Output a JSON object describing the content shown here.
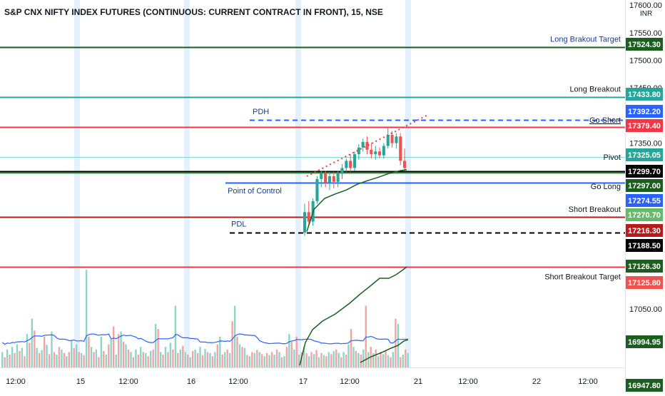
{
  "header": {
    "title": "S&P CNX NIFTY INDEX FUTURES (CONTINUOUS: CURRENT CONTRACT IN FRONT), 15, NSE"
  },
  "colors": {
    "up": "#26a69a",
    "down": "#ef5350",
    "vol_up": "#8fd3c9",
    "vol_down": "#f5a3a3",
    "session_band": "#e3f0fd",
    "ma_green": "#1b5e20",
    "ma_blue": "#2962ff"
  },
  "chart_data": {
    "type": "candlestick",
    "symbol_title": "S&P CNX NIFTY INDEX FUTURES (CONTINUOUS: CURRENT CONTRACT IN FRONT), 15, NSE",
    "currency": "INR",
    "ylim": [
      16935,
      17605
    ],
    "price_ticks": [
      17600,
      17550,
      17500,
      17450,
      17350,
      17050
    ],
    "x_ticks": [
      "12:00",
      "15",
      "12:00",
      "16",
      "12:00",
      "17",
      "12:00",
      "21",
      "12:00",
      "22",
      "12:00"
    ],
    "levels": [
      {
        "name": "Long Brakout Target",
        "value": 17524.3,
        "color": "#1b5e20",
        "style": "solid",
        "label_bg": "#1b5e20",
        "name_color": "#1e3a8a"
      },
      {
        "name": "Long Breakout",
        "value": 17433.8,
        "color": "#26a69a",
        "style": "solid",
        "label_bg": "#26a69a",
        "name_color": "#131722"
      },
      {
        "name": "Go Short",
        "value": 17392.2,
        "color": "#2962ff",
        "style": "dashed",
        "label_bg": "#2962ff",
        "name_color": "#131722"
      },
      {
        "name": "",
        "value": 17379.4,
        "color": "#f23645",
        "style": "solid",
        "label_bg": "#f23645",
        "name_color": "#131722"
      },
      {
        "name": "Pivot",
        "value": 17325.05,
        "color": "#26a69a",
        "style": "thin",
        "label_bg": "#26a69a",
        "name_color": "#131722"
      },
      {
        "name": "",
        "value": 17299.7,
        "color": "#000000",
        "style": "solid",
        "label_bg": "#000000",
        "name_color": "#131722"
      },
      {
        "name": "",
        "value": 17297.0,
        "color": "#43a047",
        "style": "solid",
        "label_bg": "#1b5e20",
        "name_color": "#131722"
      },
      {
        "name": "Go Long",
        "value": 17274.55,
        "color": "#2962ff",
        "style": "hidden",
        "label_bg": "#2962ff",
        "name_color": "#131722"
      },
      {
        "name": "",
        "value": 17270.7,
        "color": "#66bb6a",
        "style": "hidden",
        "label_bg": "#66bb6a",
        "name_color": "#131722"
      },
      {
        "name": "Short Breakout",
        "value": 17216.3,
        "color": "#b71c1c",
        "style": "solid",
        "label_bg": "#b71c1c",
        "name_color": "#131722"
      },
      {
        "name": "",
        "value": 17188.5,
        "color": "#000000",
        "style": "dashed",
        "label_bg": "#000000",
        "name_color": "#131722"
      },
      {
        "name": "Short Breakout Target",
        "value": 17126.3,
        "color": "#f23645",
        "style": "solid",
        "label_bg": "#1b5e20",
        "name_color": "#131722"
      },
      {
        "name": "",
        "value": 17125.8,
        "color": "#ef5350",
        "style": "hidden",
        "label_bg": "#ef5350",
        "name_color": "#131722"
      }
    ],
    "extra_price_labels": [
      {
        "value": 16994.95,
        "bg": "#1b5e20"
      },
      {
        "value": 16947.8,
        "bg": "#1b5e20"
      }
    ],
    "annotations": [
      {
        "text": "PDH",
        "value": 17392.2,
        "color": "#1e3a8a"
      },
      {
        "text": "Point of Control",
        "value": 17274.55,
        "color": "#1e3a8a"
      },
      {
        "text": "PDL",
        "value": 17188.5,
        "color": "#1e3a8a"
      }
    ],
    "candles": [
      {
        "o": 17188,
        "h": 17240,
        "l": 17182,
        "c": 17225
      },
      {
        "o": 17225,
        "h": 17245,
        "l": 17200,
        "c": 17208
      },
      {
        "o": 17208,
        "h": 17250,
        "l": 17200,
        "c": 17245
      },
      {
        "o": 17245,
        "h": 17290,
        "l": 17240,
        "c": 17285
      },
      {
        "o": 17285,
        "h": 17300,
        "l": 17270,
        "c": 17295
      },
      {
        "o": 17295,
        "h": 17300,
        "l": 17270,
        "c": 17278
      },
      {
        "o": 17278,
        "h": 17298,
        "l": 17265,
        "c": 17290
      },
      {
        "o": 17290,
        "h": 17298,
        "l": 17268,
        "c": 17280
      },
      {
        "o": 17280,
        "h": 17300,
        "l": 17270,
        "c": 17295
      },
      {
        "o": 17295,
        "h": 17312,
        "l": 17285,
        "c": 17305
      },
      {
        "o": 17305,
        "h": 17322,
        "l": 17298,
        "c": 17318
      },
      {
        "o": 17318,
        "h": 17330,
        "l": 17298,
        "c": 17305
      },
      {
        "o": 17305,
        "h": 17335,
        "l": 17300,
        "c": 17330
      },
      {
        "o": 17330,
        "h": 17348,
        "l": 17320,
        "c": 17342
      },
      {
        "o": 17342,
        "h": 17358,
        "l": 17335,
        "c": 17352
      },
      {
        "o": 17352,
        "h": 17362,
        "l": 17330,
        "c": 17338
      },
      {
        "o": 17338,
        "h": 17350,
        "l": 17322,
        "c": 17330
      },
      {
        "o": 17330,
        "h": 17345,
        "l": 17320,
        "c": 17335
      },
      {
        "o": 17335,
        "h": 17342,
        "l": 17322,
        "c": 17328
      },
      {
        "o": 17328,
        "h": 17350,
        "l": 17322,
        "c": 17345
      },
      {
        "o": 17345,
        "h": 17378,
        "l": 17340,
        "c": 17365
      },
      {
        "o": 17365,
        "h": 17372,
        "l": 17342,
        "c": 17350
      },
      {
        "o": 17350,
        "h": 17368,
        "l": 17340,
        "c": 17362
      },
      {
        "o": 17362,
        "h": 17368,
        "l": 17310,
        "c": 17318
      },
      {
        "o": 17318,
        "h": 17340,
        "l": 17300,
        "c": 17305
      }
    ],
    "volume": [
      {
        "v": 30,
        "up": true
      },
      {
        "v": 20,
        "up": false
      },
      {
        "v": 35,
        "up": true
      },
      {
        "v": 25,
        "up": false
      },
      {
        "v": 40,
        "up": true
      },
      {
        "v": 28,
        "up": false
      },
      {
        "v": 45,
        "up": true
      },
      {
        "v": 32,
        "up": false
      },
      {
        "v": 38,
        "up": true
      },
      {
        "v": 22,
        "up": false
      },
      {
        "v": 65,
        "up": true
      },
      {
        "v": 48,
        "up": false
      },
      {
        "v": 95,
        "up": true
      },
      {
        "v": 72,
        "up": false
      },
      {
        "v": 38,
        "up": true
      },
      {
        "v": 28,
        "up": false
      },
      {
        "v": 34,
        "up": true
      },
      {
        "v": 60,
        "up": false
      },
      {
        "v": 44,
        "up": true
      },
      {
        "v": 26,
        "up": false
      },
      {
        "v": 70,
        "up": true
      },
      {
        "v": 30,
        "up": false
      },
      {
        "v": 25,
        "up": true
      },
      {
        "v": 40,
        "up": false
      },
      {
        "v": 35,
        "up": true
      },
      {
        "v": 28,
        "up": false
      },
      {
        "v": 22,
        "up": true
      },
      {
        "v": 30,
        "up": false
      },
      {
        "v": 52,
        "up": true
      },
      {
        "v": 38,
        "up": false
      },
      {
        "v": 45,
        "up": true
      },
      {
        "v": 30,
        "up": false
      },
      {
        "v": 28,
        "up": true
      },
      {
        "v": 24,
        "up": false
      },
      {
        "v": 190,
        "up": true
      },
      {
        "v": 60,
        "up": false
      },
      {
        "v": 40,
        "up": true
      },
      {
        "v": 30,
        "up": false
      },
      {
        "v": 35,
        "up": true
      },
      {
        "v": 20,
        "up": false
      },
      {
        "v": 60,
        "up": true
      },
      {
        "v": 32,
        "up": false
      },
      {
        "v": 25,
        "up": true
      },
      {
        "v": 45,
        "up": false
      },
      {
        "v": 55,
        "up": true
      },
      {
        "v": 80,
        "up": false
      },
      {
        "v": 25,
        "up": true
      },
      {
        "v": 65,
        "up": false
      },
      {
        "v": 70,
        "up": true
      },
      {
        "v": 50,
        "up": false
      },
      {
        "v": 45,
        "up": true
      },
      {
        "v": 35,
        "up": false
      },
      {
        "v": 30,
        "up": true
      },
      {
        "v": 20,
        "up": false
      },
      {
        "v": 35,
        "up": true
      },
      {
        "v": 25,
        "up": false
      },
      {
        "v": 40,
        "up": true
      },
      {
        "v": 30,
        "up": false
      },
      {
        "v": 28,
        "up": true
      },
      {
        "v": 22,
        "up": false
      },
      {
        "v": 32,
        "up": true
      },
      {
        "v": 35,
        "up": false
      },
      {
        "v": 85,
        "up": true
      },
      {
        "v": 75,
        "up": false
      },
      {
        "v": 30,
        "up": true
      },
      {
        "v": 25,
        "up": false
      },
      {
        "v": 40,
        "up": true
      },
      {
        "v": 30,
        "up": false
      },
      {
        "v": 48,
        "up": true
      },
      {
        "v": 35,
        "up": false
      },
      {
        "v": 120,
        "up": true
      },
      {
        "v": 28,
        "up": false
      },
      {
        "v": 35,
        "up": true
      },
      {
        "v": 42,
        "up": false
      },
      {
        "v": 30,
        "up": true
      },
      {
        "v": 25,
        "up": false
      },
      {
        "v": 20,
        "up": true
      },
      {
        "v": 32,
        "up": false
      },
      {
        "v": 35,
        "up": true
      },
      {
        "v": 28,
        "up": false
      },
      {
        "v": 40,
        "up": true
      },
      {
        "v": 24,
        "up": false
      },
      {
        "v": 36,
        "up": true
      },
      {
        "v": 30,
        "up": false
      },
      {
        "v": 28,
        "up": true
      },
      {
        "v": 22,
        "up": false
      },
      {
        "v": 30,
        "up": true
      },
      {
        "v": 45,
        "up": false
      },
      {
        "v": 60,
        "up": true
      },
      {
        "v": 25,
        "up": false
      },
      {
        "v": 30,
        "up": true
      },
      {
        "v": 35,
        "up": false
      },
      {
        "v": 28,
        "up": true
      },
      {
        "v": 90,
        "up": false
      },
      {
        "v": 120,
        "up": true
      },
      {
        "v": 60,
        "up": false
      },
      {
        "v": 45,
        "up": true
      },
      {
        "v": 40,
        "up": false
      },
      {
        "v": 38,
        "up": true
      },
      {
        "v": 24,
        "up": false
      },
      {
        "v": 22,
        "up": true
      },
      {
        "v": 30,
        "up": false
      },
      {
        "v": 28,
        "up": true
      },
      {
        "v": 34,
        "up": false
      },
      {
        "v": 30,
        "up": true
      },
      {
        "v": 26,
        "up": false
      },
      {
        "v": 22,
        "up": true
      },
      {
        "v": 28,
        "up": false
      },
      {
        "v": 24,
        "up": true
      },
      {
        "v": 30,
        "up": false
      },
      {
        "v": 25,
        "up": true
      },
      {
        "v": 35,
        "up": false
      },
      {
        "v": 30,
        "up": true
      },
      {
        "v": 20,
        "up": false
      },
      {
        "v": 22,
        "up": true
      },
      {
        "v": 40,
        "up": false
      },
      {
        "v": 65,
        "up": true
      },
      {
        "v": 50,
        "up": false
      },
      {
        "v": 35,
        "up": true
      },
      {
        "v": 60,
        "up": false
      },
      {
        "v": 25,
        "up": true
      },
      {
        "v": 30,
        "up": false
      },
      {
        "v": 40,
        "up": true
      },
      {
        "v": 28,
        "up": false
      },
      {
        "v": 22,
        "up": true
      },
      {
        "v": 30,
        "up": false
      },
      {
        "v": 26,
        "up": true
      },
      {
        "v": 34,
        "up": false
      },
      {
        "v": 20,
        "up": true
      },
      {
        "v": 28,
        "up": false
      },
      {
        "v": 24,
        "up": true
      },
      {
        "v": 22,
        "up": false
      },
      {
        "v": 30,
        "up": true
      },
      {
        "v": 26,
        "up": false
      },
      {
        "v": 32,
        "up": true
      },
      {
        "v": 35,
        "up": false
      },
      {
        "v": 28,
        "up": true
      },
      {
        "v": 20,
        "up": false
      },
      {
        "v": 30,
        "up": true
      },
      {
        "v": 25,
        "up": false
      },
      {
        "v": 45,
        "up": true
      },
      {
        "v": 75,
        "up": false
      },
      {
        "v": 40,
        "up": true
      },
      {
        "v": 32,
        "up": false
      },
      {
        "v": 28,
        "up": true
      },
      {
        "v": 25,
        "up": false
      },
      {
        "v": 35,
        "up": true
      },
      {
        "v": 120,
        "up": false
      },
      {
        "v": 30,
        "up": true
      },
      {
        "v": 40,
        "up": false
      },
      {
        "v": 28,
        "up": true
      },
      {
        "v": 35,
        "up": false
      },
      {
        "v": 22,
        "up": true
      },
      {
        "v": 30,
        "up": false
      },
      {
        "v": 26,
        "up": true
      },
      {
        "v": 32,
        "up": false
      },
      {
        "v": 24,
        "up": true
      },
      {
        "v": 20,
        "up": false
      },
      {
        "v": 30,
        "up": true
      },
      {
        "v": 95,
        "up": false
      },
      {
        "v": 85,
        "up": true
      },
      {
        "v": 20,
        "up": false
      },
      {
        "v": 25,
        "up": true
      },
      {
        "v": 35,
        "up": false
      },
      {
        "v": 28,
        "up": true
      }
    ]
  }
}
